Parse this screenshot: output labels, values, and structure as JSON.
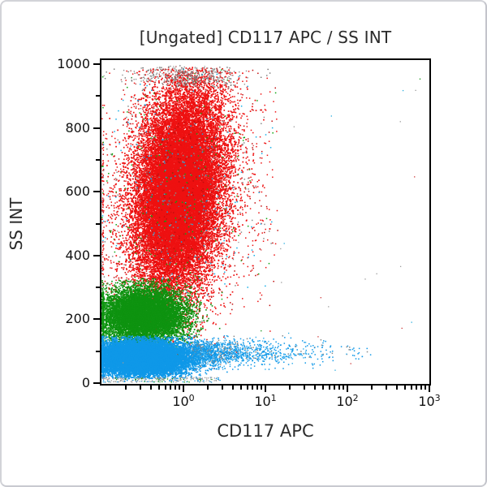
{
  "figure": {
    "background": "#ffffff",
    "card_border": "#d2d3d8",
    "frame_color": "#000000",
    "text_color": "#2b2b2b"
  },
  "chart_data": {
    "type": "scatter",
    "title": "[Ungated] CD117 APC / SS INT",
    "seed": 1234,
    "x_axis": {
      "label": "CD117 APC",
      "scale": "log",
      "decade_range": [
        -1,
        3
      ],
      "ticks": [
        {
          "decade": 0,
          "base": "10",
          "exp": "0"
        },
        {
          "decade": 1,
          "base": "10",
          "exp": "1"
        },
        {
          "decade": 2,
          "base": "10",
          "exp": "2"
        },
        {
          "decade": 3,
          "base": "10",
          "exp": "3"
        }
      ]
    },
    "y_axis": {
      "label": "SS INT",
      "scale": "linear",
      "range": [
        0,
        1000
      ],
      "ticks": [
        {
          "value": 0,
          "label": "0"
        },
        {
          "value": 200,
          "label": "200"
        },
        {
          "value": 400,
          "label": "400"
        },
        {
          "value": 600,
          "label": "600"
        },
        {
          "value": 800,
          "label": "800"
        },
        {
          "value": 1000,
          "label": "1000"
        }
      ],
      "minor_step": 100
    },
    "legend": "none",
    "grid": false,
    "populations": [
      {
        "name": "granulocytes-red-core",
        "kind": "gaussian",
        "n": 26000,
        "color": "#ee1111",
        "dot": 1.7,
        "cu": -0.06,
        "su": 0.26,
        "cv": 605,
        "sv": 158,
        "tilt": 0.00035,
        "v_min": 15,
        "v_max": 992,
        "u_max": 1.05,
        "pile_left": true
      },
      {
        "name": "granulocytes-red-fringe",
        "kind": "gaussian",
        "n": 2800,
        "colors": [
          [
            "#ee1111",
            0.6
          ],
          [
            "#c00d0d",
            0.17
          ],
          [
            "#0fa312",
            0.07
          ],
          [
            "#15aee8",
            0.08
          ],
          [
            "#8a8a8a",
            0.08
          ]
        ],
        "dot": 1.5,
        "cu": -0.05,
        "su": 0.52,
        "cv": 600,
        "sv": 215,
        "tilt": 0.0003,
        "v_min": 15,
        "v_max": 990,
        "u_max": 1.15,
        "pile_left": true
      },
      {
        "name": "debris-grey-top",
        "kind": "gaussian",
        "n": 430,
        "colors": [
          [
            "#6f6f6f",
            0.4
          ],
          [
            "#909090",
            0.35
          ],
          [
            "#a8a8a8",
            0.15
          ],
          [
            "#b05050",
            0.1
          ]
        ],
        "dot": 1.4,
        "cu": 0.04,
        "su": 0.34,
        "cv": 966,
        "sv": 20,
        "tilt": 0,
        "v_min": 918,
        "v_max": 997,
        "u_max": 1.1,
        "pile_left": false
      },
      {
        "name": "monocytes-green",
        "kind": "gaussian",
        "n": 10500,
        "color": "#0e9310",
        "dot": 1.6,
        "cu": -0.5,
        "su": 0.26,
        "cv": 214,
        "sv": 44,
        "tilt": 0,
        "v_min": 40,
        "v_max": 330,
        "u_max": 0.5,
        "pile_left": true
      },
      {
        "name": "lymphocytes-blue",
        "kind": "gaussian",
        "n": 15500,
        "color": "#0f98e8",
        "dot": 1.6,
        "cu": -0.52,
        "su": 0.3,
        "cv": 80,
        "sv": 27,
        "tilt": 0,
        "v_min": 16,
        "v_max": 150,
        "u_max": 0.55,
        "pile_left": true
      },
      {
        "name": "cd117-pos-blue-tail",
        "kind": "exp_tail",
        "n": 1400,
        "colors": [
          [
            "#0f98e8",
            0.75
          ],
          [
            "#45b5ee",
            0.15
          ],
          [
            "#8a8a8a",
            0.1
          ]
        ],
        "dot": 1.5,
        "u0": 0.1,
        "mean": 0.5,
        "u_max": 2.3,
        "cv": 96,
        "sv": 19,
        "v_min": 45,
        "v_max": 150
      },
      {
        "name": "bottom-edge-specks",
        "kind": "uniform",
        "n": 260,
        "colors": [
          [
            "#9a9a9a",
            0.5
          ],
          [
            "#0f98e8",
            0.25
          ],
          [
            "#0e9310",
            0.15
          ],
          [
            "#c8c8c8",
            0.1
          ]
        ],
        "dot": 1.3,
        "u_min": -1.0,
        "u_max": 0.45,
        "v_min": 4,
        "v_max": 20
      },
      {
        "name": "sparse-noise",
        "kind": "uniform",
        "n": 42,
        "colors": [
          [
            "#9a9a9a",
            0.5
          ],
          [
            "#cc3333",
            0.2
          ],
          [
            "#22aadd",
            0.15
          ],
          [
            "#0e9310",
            0.15
          ]
        ],
        "dot": 1.3,
        "u_min": -1.0,
        "u_max": 2.95,
        "v_min": 5,
        "v_max": 995
      }
    ]
  }
}
